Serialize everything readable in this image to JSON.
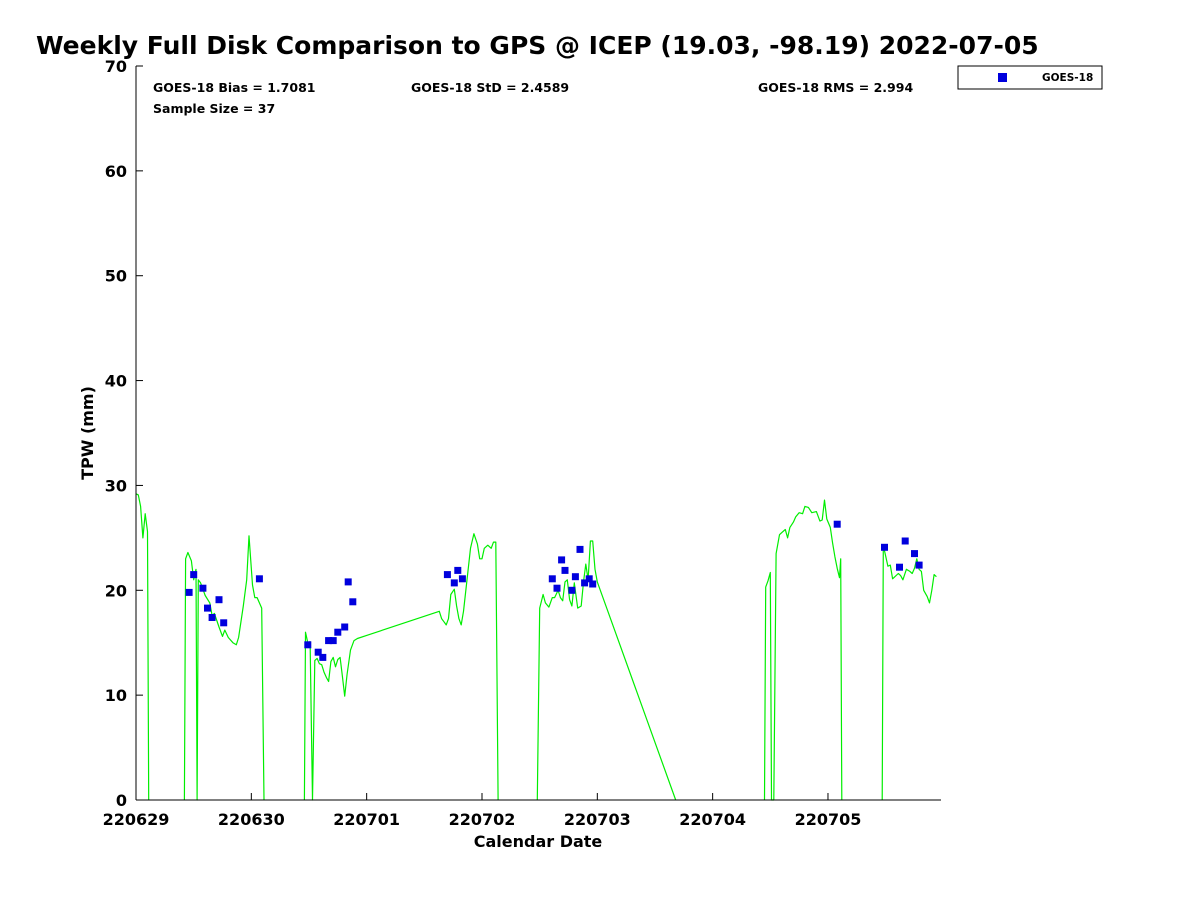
{
  "chart_data": {
    "type": "scatter",
    "title": "Weekly Full Disk Comparison to GPS @ ICEP (19.03, -98.19) 2022-07-05",
    "xlabel": "Calendar Date",
    "ylabel": "TPW (mm)",
    "xlim": [
      0,
      6.98
    ],
    "ylim": [
      0,
      70
    ],
    "x_unit": "days since 220629 (tick labels shown as YYMMDD)",
    "x_ticks": [
      {
        "value": 0,
        "label": "220629"
      },
      {
        "value": 1,
        "label": "220630"
      },
      {
        "value": 2,
        "label": "220701"
      },
      {
        "value": 3,
        "label": "220702"
      },
      {
        "value": 4,
        "label": "220703"
      },
      {
        "value": 5,
        "label": "220704"
      },
      {
        "value": 6,
        "label": "220705"
      }
    ],
    "y_ticks": [
      {
        "value": 0,
        "label": "0"
      },
      {
        "value": 10,
        "label": "10"
      },
      {
        "value": 20,
        "label": "20"
      },
      {
        "value": 30,
        "label": "30"
      },
      {
        "value": 40,
        "label": "40"
      },
      {
        "value": 50,
        "label": "50"
      },
      {
        "value": 60,
        "label": "60"
      },
      {
        "value": 70,
        "label": "70"
      }
    ],
    "grid": false,
    "legend_position": "outside-top-right",
    "stats": {
      "bias": "GOES-18 Bias = 1.7081",
      "std": "GOES-18 StD = 2.4589",
      "rms": "GOES-18 RMS = 2.994",
      "sample": "Sample Size = 37"
    },
    "series": [
      {
        "name": "GOES-18",
        "kind": "scatter",
        "marker": "square",
        "color": "#0000dd",
        "points": [
          [
            0.46,
            19.8
          ],
          [
            0.5,
            21.5
          ],
          [
            0.58,
            20.2
          ],
          [
            0.62,
            18.3
          ],
          [
            0.66,
            17.4
          ],
          [
            0.72,
            19.1
          ],
          [
            0.76,
            16.9
          ],
          [
            1.07,
            21.1
          ],
          [
            1.49,
            14.8
          ],
          [
            1.58,
            14.1
          ],
          [
            1.62,
            13.6
          ],
          [
            1.67,
            15.2
          ],
          [
            1.71,
            15.2
          ],
          [
            1.75,
            16.0
          ],
          [
            1.81,
            16.5
          ],
          [
            1.84,
            20.8
          ],
          [
            1.88,
            18.9
          ],
          [
            2.7,
            21.5
          ],
          [
            2.76,
            20.7
          ],
          [
            2.79,
            21.9
          ],
          [
            2.83,
            21.1
          ],
          [
            3.61,
            21.1
          ],
          [
            3.65,
            20.2
          ],
          [
            3.69,
            22.9
          ],
          [
            3.72,
            21.9
          ],
          [
            3.78,
            20.0
          ],
          [
            3.81,
            21.3
          ],
          [
            3.85,
            23.9
          ],
          [
            3.89,
            20.7
          ],
          [
            3.93,
            21.1
          ],
          [
            3.96,
            20.6
          ],
          [
            6.08,
            26.3
          ],
          [
            6.49,
            24.1
          ],
          [
            6.62,
            22.2
          ],
          [
            6.67,
            24.7
          ],
          [
            6.75,
            23.5
          ],
          [
            6.79,
            22.4
          ]
        ]
      },
      {
        "name": "",
        "kind": "line",
        "color": "#00ee00",
        "segments": [
          [
            [
              0.0,
              29.2
            ],
            [
              0.02,
              29.1
            ],
            [
              0.04,
              28.0
            ],
            [
              0.06,
              25.0
            ],
            [
              0.08,
              27.3
            ],
            [
              0.1,
              25.6
            ],
            [
              0.11,
              0
            ]
          ],
          [
            [
              0.42,
              0
            ],
            [
              0.43,
              23.0
            ],
            [
              0.45,
              23.6
            ],
            [
              0.48,
              22.8
            ],
            [
              0.5,
              21.0
            ],
            [
              0.52,
              22.0
            ],
            [
              0.53,
              0
            ],
            [
              0.54,
              21.0
            ],
            [
              0.56,
              20.7
            ],
            [
              0.6,
              19.5
            ],
            [
              0.64,
              18.8
            ],
            [
              0.66,
              17.6
            ],
            [
              0.68,
              17.8
            ],
            [
              0.72,
              16.5
            ],
            [
              0.75,
              15.6
            ],
            [
              0.77,
              16.2
            ],
            [
              0.8,
              15.5
            ],
            [
              0.84,
              15.0
            ],
            [
              0.87,
              14.8
            ],
            [
              0.89,
              15.5
            ],
            [
              0.93,
              18.5
            ],
            [
              0.96,
              21.0
            ],
            [
              0.98,
              25.2
            ],
            [
              1.01,
              20.5
            ],
            [
              1.03,
              19.3
            ],
            [
              1.05,
              19.3
            ],
            [
              1.07,
              18.8
            ],
            [
              1.09,
              18.3
            ],
            [
              1.11,
              0
            ]
          ],
          [
            [
              1.46,
              0
            ],
            [
              1.47,
              16.0
            ],
            [
              1.49,
              15.0
            ],
            [
              1.51,
              15.1
            ],
            [
              1.53,
              0
            ],
            [
              1.55,
              13.3
            ],
            [
              1.57,
              13.5
            ],
            [
              1.59,
              13.0
            ],
            [
              1.61,
              12.9
            ],
            [
              1.63,
              12.2
            ],
            [
              1.65,
              11.7
            ],
            [
              1.67,
              11.3
            ],
            [
              1.69,
              13.2
            ],
            [
              1.71,
              13.6
            ],
            [
              1.73,
              12.7
            ],
            [
              1.75,
              13.4
            ],
            [
              1.77,
              13.6
            ],
            [
              1.79,
              11.8
            ],
            [
              1.81,
              9.9
            ],
            [
              1.83,
              12.0
            ],
            [
              1.86,
              14.3
            ],
            [
              1.89,
              15.2
            ],
            [
              1.92,
              15.4
            ],
            [
              2.63,
              18.0
            ],
            [
              2.65,
              17.3
            ],
            [
              2.67,
              17.0
            ],
            [
              2.69,
              16.7
            ],
            [
              2.71,
              17.3
            ],
            [
              2.73,
              19.6
            ],
            [
              2.76,
              20.1
            ],
            [
              2.78,
              18.5
            ],
            [
              2.8,
              17.3
            ],
            [
              2.82,
              16.7
            ],
            [
              2.84,
              18.0
            ],
            [
              2.87,
              21.0
            ],
            [
              2.9,
              24.0
            ],
            [
              2.93,
              25.4
            ],
            [
              2.96,
              24.4
            ],
            [
              2.98,
              23.0
            ],
            [
              3.0,
              23.0
            ],
            [
              3.02,
              24.0
            ],
            [
              3.05,
              24.3
            ],
            [
              3.08,
              24.0
            ],
            [
              3.1,
              24.6
            ],
            [
              3.12,
              24.6
            ],
            [
              3.14,
              0
            ]
          ],
          [
            [
              3.48,
              0
            ],
            [
              3.5,
              18.3
            ],
            [
              3.53,
              19.6
            ],
            [
              3.55,
              18.8
            ],
            [
              3.58,
              18.4
            ],
            [
              3.61,
              19.3
            ],
            [
              3.63,
              19.3
            ],
            [
              3.66,
              20.0
            ],
            [
              3.68,
              19.3
            ],
            [
              3.7,
              19.0
            ],
            [
              3.72,
              20.8
            ],
            [
              3.74,
              21.0
            ],
            [
              3.76,
              19.1
            ],
            [
              3.78,
              18.5
            ],
            [
              3.8,
              20.7
            ],
            [
              3.83,
              18.3
            ],
            [
              3.86,
              18.5
            ],
            [
              3.88,
              20.8
            ],
            [
              3.9,
              22.5
            ],
            [
              3.92,
              21.0
            ],
            [
              3.94,
              24.7
            ],
            [
              3.96,
              24.7
            ],
            [
              3.98,
              22.0
            ],
            [
              4.0,
              20.8
            ],
            [
              4.68,
              0
            ]
          ],
          [
            [
              5.45,
              0
            ],
            [
              5.46,
              20.3
            ],
            [
              5.48,
              20.9
            ],
            [
              5.5,
              21.7
            ],
            [
              5.51,
              0
            ],
            [
              5.53,
              0
            ],
            [
              5.55,
              23.5
            ],
            [
              5.58,
              25.3
            ],
            [
              5.6,
              25.5
            ],
            [
              5.63,
              25.8
            ],
            [
              5.65,
              25.0
            ],
            [
              5.67,
              26.0
            ],
            [
              5.7,
              26.5
            ],
            [
              5.72,
              27.0
            ],
            [
              5.75,
              27.4
            ],
            [
              5.78,
              27.3
            ],
            [
              5.8,
              28.0
            ],
            [
              5.83,
              27.9
            ],
            [
              5.86,
              27.4
            ],
            [
              5.9,
              27.5
            ],
            [
              5.93,
              26.6
            ],
            [
              5.95,
              26.7
            ],
            [
              5.97,
              28.6
            ],
            [
              5.99,
              26.8
            ],
            [
              6.02,
              26.0
            ],
            [
              6.04,
              24.5
            ],
            [
              6.06,
              23.2
            ],
            [
              6.08,
              22.1
            ],
            [
              6.1,
              21.2
            ],
            [
              6.11,
              23.0
            ],
            [
              6.12,
              0
            ]
          ],
          [
            [
              6.47,
              0
            ],
            [
              6.48,
              24.3
            ],
            [
              6.5,
              23.3
            ],
            [
              6.52,
              22.3
            ],
            [
              6.54,
              22.4
            ],
            [
              6.56,
              21.1
            ],
            [
              6.58,
              21.3
            ],
            [
              6.61,
              21.6
            ],
            [
              6.63,
              21.4
            ],
            [
              6.65,
              21.0
            ],
            [
              6.68,
              22.0
            ],
            [
              6.71,
              21.8
            ],
            [
              6.73,
              21.6
            ],
            [
              6.75,
              22.1
            ],
            [
              6.77,
              23.0
            ],
            [
              6.79,
              22.0
            ],
            [
              6.81,
              21.8
            ],
            [
              6.83,
              20.0
            ],
            [
              6.86,
              19.4
            ],
            [
              6.88,
              18.8
            ],
            [
              6.9,
              20.0
            ],
            [
              6.92,
              21.5
            ],
            [
              6.94,
              21.3
            ]
          ]
        ]
      }
    ]
  },
  "legend": {
    "label": "GOES-18",
    "marker_color": "#0000dd"
  }
}
